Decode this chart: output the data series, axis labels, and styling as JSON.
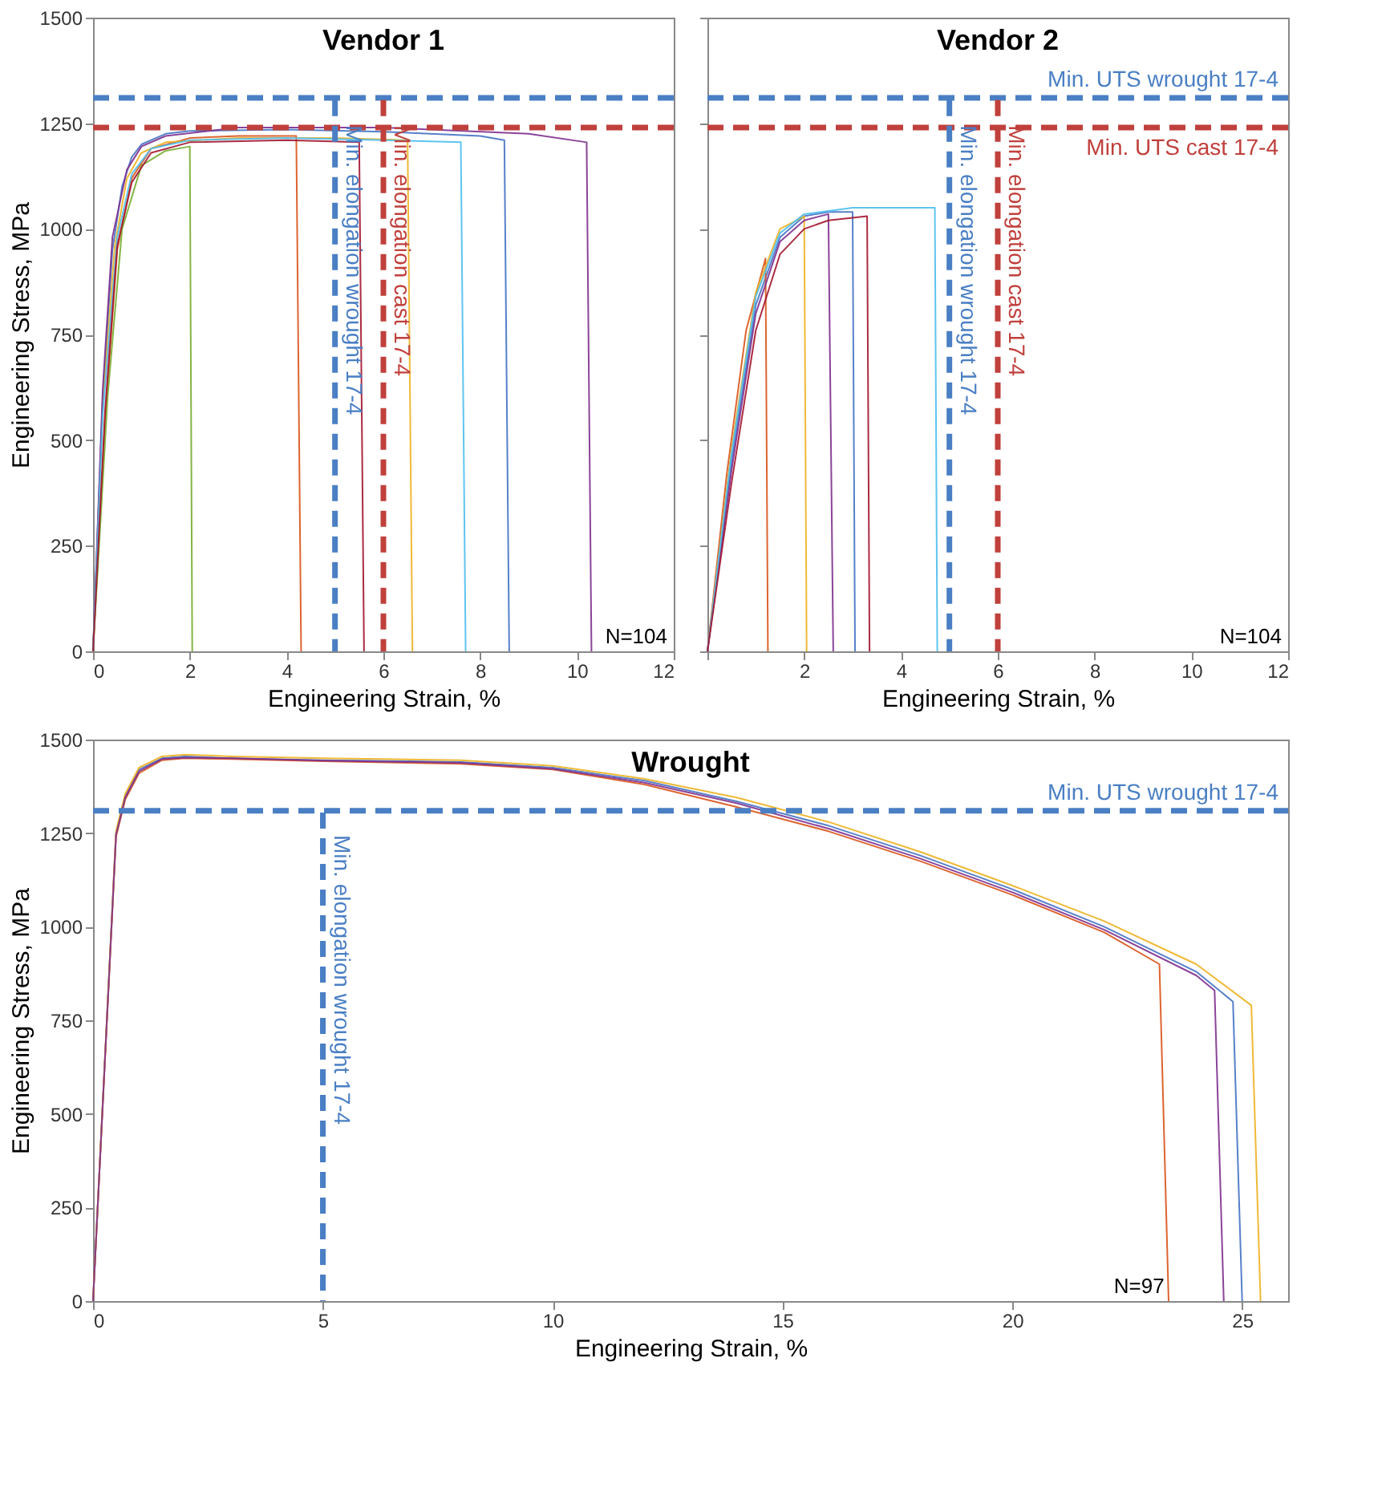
{
  "chart_data": [
    {
      "type": "line",
      "title": "Vendor 1",
      "xlabel": "Engineering Strain, %",
      "ylabel": "Engineering Stress, MPa",
      "xlim": [
        0,
        12
      ],
      "ylim": [
        0,
        1500
      ],
      "xticks": [
        0,
        2,
        4,
        6,
        8,
        10,
        12
      ],
      "yticks": [
        0,
        250,
        500,
        750,
        1000,
        1250,
        1500
      ],
      "grid": false,
      "line_style": "solid",
      "series": [
        {
          "color": "#4472c4",
          "x": [
            0,
            0.2,
            0.4,
            0.6,
            0.8,
            1.0,
            1.5,
            2,
            4,
            6,
            8,
            8.5,
            8.6
          ],
          "values": [
            0,
            600,
            950,
            1100,
            1170,
            1200,
            1225,
            1232,
            1235,
            1230,
            1220,
            1210,
            0
          ]
        },
        {
          "color": "#d95319",
          "x": [
            0,
            0.25,
            0.5,
            0.8,
            1.2,
            2,
            3,
            4.2,
            4.3
          ],
          "values": [
            0,
            550,
            950,
            1120,
            1190,
            1215,
            1220,
            1220,
            0
          ]
        },
        {
          "color": "#edb120",
          "x": [
            0,
            0.2,
            0.45,
            0.7,
            1.0,
            1.5,
            3,
            5,
            6.5,
            6.6
          ],
          "values": [
            0,
            580,
            960,
            1120,
            1180,
            1205,
            1215,
            1215,
            1210,
            0
          ]
        },
        {
          "color": "#7e2f8e",
          "x": [
            0,
            0.2,
            0.4,
            0.7,
            1.0,
            1.5,
            3,
            6,
            9,
            10.2,
            10.3
          ],
          "values": [
            0,
            620,
            980,
            1140,
            1195,
            1220,
            1240,
            1240,
            1225,
            1205,
            0
          ]
        },
        {
          "color": "#77ac30",
          "x": [
            0,
            0.3,
            0.6,
            1.0,
            1.5,
            2.0,
            2.05
          ],
          "values": [
            0,
            600,
            1000,
            1150,
            1185,
            1195,
            0
          ]
        },
        {
          "color": "#4dbeee",
          "x": [
            0,
            0.2,
            0.5,
            0.8,
            1.2,
            2,
            4,
            6,
            7.6,
            7.7
          ],
          "values": [
            0,
            560,
            980,
            1130,
            1190,
            1210,
            1215,
            1210,
            1205,
            0
          ]
        },
        {
          "color": "#a2142f",
          "x": [
            0,
            0.25,
            0.5,
            0.8,
            1.2,
            2,
            4,
            5.5,
            5.6
          ],
          "values": [
            0,
            570,
            960,
            1110,
            1180,
            1205,
            1210,
            1205,
            0
          ]
        }
      ],
      "ref_lines": [
        {
          "axis": "y",
          "value": 1310,
          "label": null,
          "color": "#4a7fc4",
          "line_style": "dashed"
        },
        {
          "axis": "y",
          "value": 1240,
          "label": null,
          "color": "#c0403c",
          "line_style": "dashed"
        },
        {
          "axis": "x",
          "value": 5,
          "label": "Min. elongation wrought 17-4",
          "color": "#4a7fc4",
          "line_style": "dashed"
        },
        {
          "axis": "x",
          "value": 6,
          "label": "Min. elongation cast 17-4",
          "color": "#c0403c",
          "line_style": "dashed"
        }
      ],
      "annotations": [
        "N=104"
      ]
    },
    {
      "type": "line",
      "title": "Vendor 2",
      "xlabel": "Engineering Strain, %",
      "xlim": [
        0,
        12
      ],
      "ylim": [
        0,
        1500
      ],
      "xticks": [
        {
          "value": 0,
          "label": null
        },
        2,
        4,
        6,
        8,
        10,
        12
      ],
      "yticks": [
        0,
        250,
        500,
        750,
        1000,
        1250,
        1500
      ],
      "tick_labels": "x",
      "grid": false,
      "line_style": "solid",
      "series": [
        {
          "color": "#4472c4",
          "x": [
            0,
            0.5,
            1,
            1.5,
            2,
            2.5,
            3,
            3.05
          ],
          "values": [
            0,
            450,
            820,
            980,
            1030,
            1040,
            1040,
            0
          ]
        },
        {
          "color": "#d95319",
          "x": [
            0,
            0.4,
            0.8,
            1.2,
            1.25
          ],
          "values": [
            0,
            420,
            760,
            930,
            0
          ]
        },
        {
          "color": "#edb120",
          "x": [
            0,
            0.5,
            1,
            1.5,
            2,
            2.05
          ],
          "values": [
            0,
            480,
            850,
            1000,
            1030,
            0
          ]
        },
        {
          "color": "#7e2f8e",
          "x": [
            0,
            0.5,
            1,
            1.5,
            2,
            2.5,
            2.6
          ],
          "values": [
            0,
            430,
            800,
            970,
            1020,
            1035,
            0
          ]
        },
        {
          "color": "#4dbeee",
          "x": [
            0,
            0.5,
            1,
            1.5,
            2,
            3,
            4,
            4.7,
            4.75
          ],
          "values": [
            0,
            470,
            840,
            990,
            1035,
            1050,
            1050,
            1050,
            0
          ]
        },
        {
          "color": "#a2142f",
          "x": [
            0,
            0.5,
            1,
            1.5,
            2,
            2.5,
            3.3,
            3.35
          ],
          "values": [
            0,
            400,
            760,
            940,
            1000,
            1020,
            1030,
            0
          ]
        }
      ],
      "ref_lines": [
        {
          "axis": "y",
          "value": 1310,
          "label": "Min. UTS wrought 17-4",
          "color": "#4a7fc4",
          "line_style": "dashed"
        },
        {
          "axis": "y",
          "value": 1240,
          "label": "Min. UTS cast 17-4",
          "color": "#c0403c",
          "line_style": "dashed"
        },
        {
          "axis": "x",
          "value": 5,
          "label": "Min. elongation wrought 17-4",
          "color": "#4a7fc4",
          "line_style": "dashed"
        },
        {
          "axis": "x",
          "value": 6,
          "label": "Min. elongation cast 17-4",
          "color": "#c0403c",
          "line_style": "dashed"
        }
      ],
      "annotations": [
        "N=104"
      ]
    },
    {
      "type": "line",
      "title": "Wrought",
      "xlabel": "Engineering Strain, %",
      "ylabel": "Engineering Stress, MPa",
      "xlim": [
        0,
        26
      ],
      "ylim": [
        0,
        1500
      ],
      "xticks": [
        0,
        5,
        10,
        15,
        20,
        25
      ],
      "yticks": [
        0,
        250,
        500,
        750,
        1000,
        1250,
        1500
      ],
      "grid": false,
      "line_style": "solid",
      "series": [
        {
          "color": "#4472c4",
          "x": [
            0,
            0.5,
            0.7,
            1,
            1.5,
            2,
            3,
            5,
            8,
            10,
            12,
            14,
            16,
            18,
            20,
            22,
            24,
            24.8,
            25
          ],
          "values": [
            0,
            1250,
            1350,
            1420,
            1450,
            1455,
            1450,
            1445,
            1440,
            1425,
            1390,
            1335,
            1270,
            1190,
            1100,
            1000,
            880,
            800,
            0
          ]
        },
        {
          "color": "#d95319",
          "x": [
            0,
            0.5,
            0.7,
            1,
            1.5,
            2,
            3,
            5,
            8,
            10,
            12,
            14,
            16,
            18,
            20,
            22,
            23.2,
            23.4
          ],
          "values": [
            0,
            1240,
            1340,
            1410,
            1445,
            1450,
            1448,
            1442,
            1435,
            1420,
            1380,
            1320,
            1255,
            1175,
            1085,
            985,
            900,
            0
          ]
        },
        {
          "color": "#edb120",
          "x": [
            0,
            0.5,
            0.7,
            1,
            1.5,
            2,
            3,
            5,
            8,
            10,
            12,
            14,
            16,
            18,
            20,
            22,
            24,
            25.2,
            25.4
          ],
          "values": [
            0,
            1255,
            1355,
            1425,
            1455,
            1460,
            1455,
            1450,
            1445,
            1430,
            1395,
            1345,
            1280,
            1200,
            1110,
            1015,
            900,
            790,
            0
          ]
        },
        {
          "color": "#7e2f8e",
          "x": [
            0,
            0.5,
            0.7,
            1,
            1.5,
            2,
            3,
            5,
            8,
            10,
            12,
            14,
            16,
            18,
            20,
            22,
            24,
            24.4,
            24.6
          ],
          "values": [
            0,
            1245,
            1345,
            1415,
            1448,
            1452,
            1450,
            1444,
            1438,
            1422,
            1385,
            1330,
            1262,
            1182,
            1092,
            992,
            870,
            830,
            0
          ]
        }
      ],
      "ref_lines": [
        {
          "axis": "y",
          "value": 1310,
          "label": "Min. UTS wrought 17-4",
          "color": "#4a7fc4",
          "line_style": "dashed"
        },
        {
          "axis": "x",
          "value": 5,
          "label": "Min. elongation wrought 17-4",
          "color": "#4a7fc4",
          "line_style": "dashed"
        }
      ],
      "annotations": [
        "N=97"
      ]
    }
  ]
}
